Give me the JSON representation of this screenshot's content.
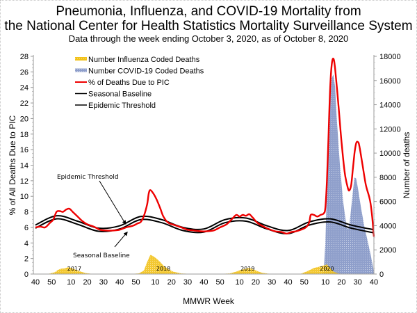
{
  "chart_data": {
    "type": "line",
    "title": "Pneumonia, Influenza, and COVID-19 Mortality from",
    "title_line2": "the National Center for Health Statistics Mortality Surveillance System",
    "subtitle": "Data through the week ending October 3, 2020, as of October 8, 2020",
    "xlabel": "MMWR Week",
    "ylabel": "% of All Deaths Due to PIC",
    "ylabel_right": "Number of deaths",
    "ylim": [
      0,
      28
    ],
    "ylim_right": [
      0,
      18000
    ],
    "yticks": [
      "0",
      "2",
      "4",
      "6",
      "8",
      "10",
      "12",
      "14",
      "16",
      "18",
      "20",
      "22",
      "24",
      "26",
      "28"
    ],
    "yticks_right": [
      "0",
      "2000",
      "4000",
      "6000",
      "8000",
      "10000",
      "12000",
      "14000",
      "16000",
      "18000"
    ],
    "xticks": [
      {
        "label": "40",
        "week_index": 0
      },
      {
        "label": "50",
        "week_index": 10
      },
      {
        "label": "10",
        "week_index": 22
      },
      {
        "label": "20",
        "week_index": 32
      },
      {
        "label": "30",
        "week_index": 42
      },
      {
        "label": "40",
        "week_index": 52
      },
      {
        "label": "50",
        "week_index": 62
      },
      {
        "label": "10",
        "week_index": 74
      },
      {
        "label": "20",
        "week_index": 84
      },
      {
        "label": "30",
        "week_index": 94
      },
      {
        "label": "40",
        "week_index": 104
      },
      {
        "label": "50",
        "week_index": 114
      },
      {
        "label": "10",
        "week_index": 126
      },
      {
        "label": "20",
        "week_index": 136
      },
      {
        "label": "30",
        "week_index": 146
      },
      {
        "label": "40",
        "week_index": 156
      },
      {
        "label": "50",
        "week_index": 166
      },
      {
        "label": "10",
        "week_index": 179
      },
      {
        "label": "20",
        "week_index": 189
      },
      {
        "label": "30",
        "week_index": 199
      },
      {
        "label": "40",
        "week_index": 209
      }
    ],
    "year_labels": [
      {
        "label": "2017",
        "week_index": 24
      },
      {
        "label": "2018",
        "week_index": 79
      },
      {
        "label": "2019",
        "week_index": 131
      },
      {
        "label": "2020",
        "week_index": 180
      }
    ],
    "grid": false,
    "legend_position": "top-left",
    "legend": [
      {
        "name": "Number Influenza Coded Deaths",
        "color": "#f5c518",
        "kind": "area"
      },
      {
        "name": "Number COVID-19 Coded Deaths",
        "color": "#99a8cf",
        "kind": "area"
      },
      {
        "name": "% of Deaths Due to PIC",
        "color": "#ee0000",
        "kind": "line"
      },
      {
        "name": "Seasonal Baseline",
        "color": "#000000",
        "kind": "line"
      },
      {
        "name": "Epidemic Threshold",
        "color": "#000000",
        "kind": "line"
      }
    ],
    "annotations": [
      {
        "text": "Epidemic Threshold",
        "points_to_week_index": 57
      },
      {
        "text": "Seasonal Baseline",
        "points_to_week_index": 58
      }
    ],
    "series": [
      {
        "name": "% of Deaths Due to PIC",
        "axis": "left",
        "points": [
          [
            0,
            6.0
          ],
          [
            3,
            6.1
          ],
          [
            6,
            6.0
          ],
          [
            9,
            6.6
          ],
          [
            11,
            7.0
          ],
          [
            13,
            8.0
          ],
          [
            15,
            8.1
          ],
          [
            17,
            8.0
          ],
          [
            19,
            8.3
          ],
          [
            21,
            8.4
          ],
          [
            23,
            8.0
          ],
          [
            26,
            7.4
          ],
          [
            29,
            6.8
          ],
          [
            32,
            6.4
          ],
          [
            36,
            6.1
          ],
          [
            40,
            5.7
          ],
          [
            44,
            5.6
          ],
          [
            48,
            5.6
          ],
          [
            52,
            5.7
          ],
          [
            56,
            6.0
          ],
          [
            60,
            6.2
          ],
          [
            63,
            6.5
          ],
          [
            65,
            6.7
          ],
          [
            67,
            7.5
          ],
          [
            69,
            9.0
          ],
          [
            70,
            10.4
          ],
          [
            71,
            10.8
          ],
          [
            73,
            10.3
          ],
          [
            75,
            9.5
          ],
          [
            77,
            8.5
          ],
          [
            79,
            7.4
          ],
          [
            82,
            6.6
          ],
          [
            86,
            6.3
          ],
          [
            90,
            6.0
          ],
          [
            94,
            5.7
          ],
          [
            98,
            5.6
          ],
          [
            102,
            5.5
          ],
          [
            106,
            5.5
          ],
          [
            110,
            5.6
          ],
          [
            114,
            6.0
          ],
          [
            118,
            6.4
          ],
          [
            121,
            7.0
          ],
          [
            124,
            7.6
          ],
          [
            126,
            7.4
          ],
          [
            128,
            7.6
          ],
          [
            130,
            7.5
          ],
          [
            132,
            7.7
          ],
          [
            134,
            7.3
          ],
          [
            137,
            6.6
          ],
          [
            140,
            6.2
          ],
          [
            144,
            5.8
          ],
          [
            148,
            5.5
          ],
          [
            152,
            5.4
          ],
          [
            155,
            5.2
          ],
          [
            158,
            5.4
          ],
          [
            161,
            5.5
          ],
          [
            164,
            5.7
          ],
          [
            167,
            6.0
          ],
          [
            169,
            6.6
          ],
          [
            170,
            7.6
          ],
          [
            172,
            7.6
          ],
          [
            174,
            7.4
          ],
          [
            176,
            7.6
          ],
          [
            178,
            7.8
          ],
          [
            179,
            8.5
          ],
          [
            180,
            12.0
          ],
          [
            181,
            18.0
          ],
          [
            182,
            24.0
          ],
          [
            183,
            27.0
          ],
          [
            184,
            27.7
          ],
          [
            185,
            26.5
          ],
          [
            187,
            22.0
          ],
          [
            189,
            17.0
          ],
          [
            191,
            13.0
          ],
          [
            193,
            11.0
          ],
          [
            194,
            10.8
          ],
          [
            195,
            11.5
          ],
          [
            196,
            13.5
          ],
          [
            197,
            15.5
          ],
          [
            198,
            16.8
          ],
          [
            199,
            17.0
          ],
          [
            200,
            16.5
          ],
          [
            202,
            14.0
          ],
          [
            204,
            11.5
          ],
          [
            206,
            10.0
          ],
          [
            207,
            9.0
          ],
          [
            208,
            7.2
          ],
          [
            209,
            4.8
          ]
        ]
      },
      {
        "name": "Seasonal Baseline",
        "axis": "left",
        "points": [
          [
            0,
            5.9
          ],
          [
            13,
            7.1
          ],
          [
            26,
            6.4
          ],
          [
            39,
            5.5
          ],
          [
            52,
            5.8
          ],
          [
            65,
            7.0
          ],
          [
            78,
            6.6
          ],
          [
            91,
            5.6
          ],
          [
            104,
            5.4
          ],
          [
            117,
            6.6
          ],
          [
            130,
            6.8
          ],
          [
            143,
            5.8
          ],
          [
            156,
            5.2
          ],
          [
            169,
            6.3
          ],
          [
            182,
            6.7
          ],
          [
            195,
            5.9
          ],
          [
            209,
            5.3
          ]
        ]
      },
      {
        "name": "Epidemic Threshold",
        "axis": "left",
        "points": [
          [
            0,
            6.3
          ],
          [
            13,
            7.5
          ],
          [
            26,
            6.8
          ],
          [
            39,
            5.9
          ],
          [
            52,
            6.2
          ],
          [
            65,
            7.4
          ],
          [
            78,
            7.0
          ],
          [
            91,
            6.0
          ],
          [
            104,
            5.8
          ],
          [
            117,
            7.0
          ],
          [
            130,
            7.2
          ],
          [
            143,
            6.2
          ],
          [
            156,
            5.6
          ],
          [
            169,
            6.7
          ],
          [
            182,
            7.1
          ],
          [
            195,
            6.3
          ],
          [
            209,
            5.7
          ]
        ]
      },
      {
        "name": "Number Influenza Coded Deaths",
        "axis": "right",
        "points": [
          [
            0,
            0
          ],
          [
            8,
            20
          ],
          [
            12,
            150
          ],
          [
            14,
            350
          ],
          [
            16,
            450
          ],
          [
            18,
            460
          ],
          [
            20,
            560
          ],
          [
            22,
            500
          ],
          [
            25,
            350
          ],
          [
            28,
            200
          ],
          [
            31,
            80
          ],
          [
            35,
            20
          ],
          [
            45,
            0
          ],
          [
            58,
            0
          ],
          [
            64,
            60
          ],
          [
            67,
            300
          ],
          [
            69,
            1000
          ],
          [
            71,
            1600
          ],
          [
            73,
            1450
          ],
          [
            75,
            1250
          ],
          [
            77,
            1000
          ],
          [
            79,
            700
          ],
          [
            82,
            400
          ],
          [
            85,
            200
          ],
          [
            90,
            50
          ],
          [
            98,
            0
          ],
          [
            112,
            0
          ],
          [
            120,
            50
          ],
          [
            124,
            200
          ],
          [
            127,
            350
          ],
          [
            130,
            450
          ],
          [
            132,
            500
          ],
          [
            134,
            420
          ],
          [
            137,
            250
          ],
          [
            140,
            100
          ],
          [
            145,
            20
          ],
          [
            155,
            0
          ],
          [
            164,
            30
          ],
          [
            168,
            250
          ],
          [
            172,
            500
          ],
          [
            175,
            600
          ],
          [
            178,
            700
          ],
          [
            180,
            800
          ],
          [
            182,
            500
          ],
          [
            184,
            200
          ],
          [
            187,
            50
          ],
          [
            190,
            10
          ],
          [
            209,
            0
          ]
        ]
      },
      {
        "name": "Number COVID-19 Coded Deaths",
        "axis": "right",
        "points": [
          [
            177,
            0
          ],
          [
            178,
            200
          ],
          [
            179,
            2500
          ],
          [
            180,
            7000
          ],
          [
            181,
            11000
          ],
          [
            182,
            14500
          ],
          [
            183,
            16200
          ],
          [
            184,
            16500
          ],
          [
            185,
            15500
          ],
          [
            186,
            13000
          ],
          [
            188,
            9000
          ],
          [
            190,
            6000
          ],
          [
            192,
            4000
          ],
          [
            193,
            3700
          ],
          [
            194,
            4200
          ],
          [
            196,
            6800
          ],
          [
            197,
            8000
          ],
          [
            198,
            7900
          ],
          [
            199,
            7200
          ],
          [
            201,
            5500
          ],
          [
            203,
            4000
          ],
          [
            205,
            2800
          ],
          [
            207,
            1600
          ],
          [
            208,
            900
          ],
          [
            209,
            200
          ]
        ]
      }
    ]
  }
}
